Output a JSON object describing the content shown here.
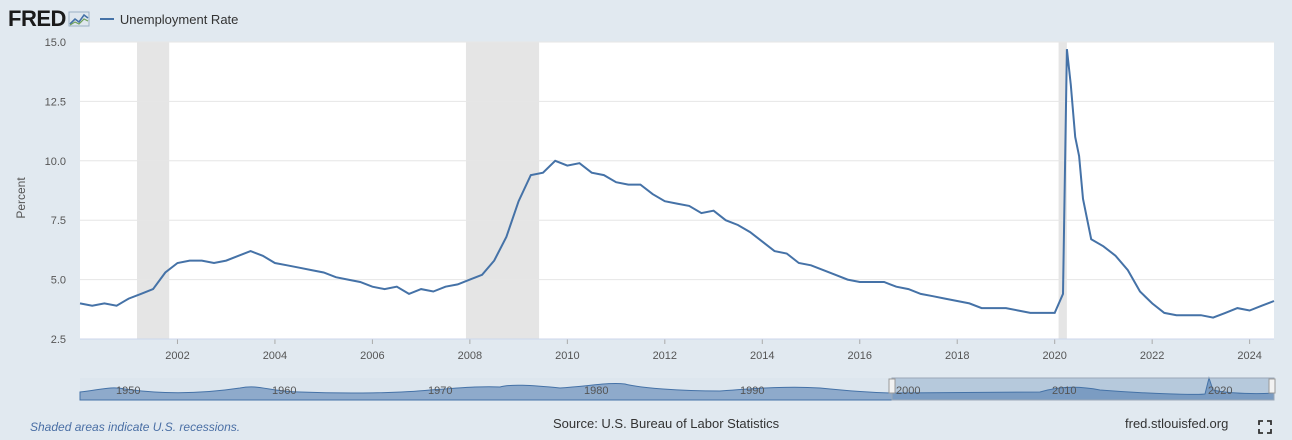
{
  "header": {
    "logo": "FRED",
    "legend_label": "Unemployment Rate"
  },
  "footer": {
    "note": "Shaded areas indicate U.S. recessions.",
    "source": "Source: U.S. Bureau of Labor Statistics",
    "site": "fred.stlouisfed.org"
  },
  "colors": {
    "series": "#4572a7",
    "recession": "#e5e5e5",
    "background": "#e1e9f0"
  },
  "icons": {
    "logo_mark": "chart-line-icon",
    "fullscreen": "fullscreen-icon"
  },
  "chart_data": {
    "type": "line",
    "ylabel": "Percent",
    "xlim": [
      2000.0,
      2024.5
    ],
    "ylim": [
      2.5,
      15.0
    ],
    "grid": true,
    "legend": "top-left",
    "yticks": [
      "2.5",
      "5.0",
      "7.5",
      "10.0",
      "12.5",
      "15.0"
    ],
    "ytick_values": [
      2.5,
      5.0,
      7.5,
      10.0,
      12.5,
      15.0
    ],
    "xticks": [
      "2002",
      "2004",
      "2006",
      "2008",
      "2010",
      "2012",
      "2014",
      "2016",
      "2018",
      "2020",
      "2022",
      "2024"
    ],
    "xtick_values": [
      2002,
      2004,
      2006,
      2008,
      2010,
      2012,
      2014,
      2016,
      2018,
      2020,
      2022,
      2024
    ],
    "recessions": [
      [
        2001.17,
        2001.83
      ],
      [
        2007.92,
        2009.42
      ],
      [
        2020.08,
        2020.25
      ]
    ],
    "series": [
      {
        "x": [
          2000.0,
          2000.25,
          2000.5,
          2000.75,
          2001.0,
          2001.25,
          2001.5,
          2001.75,
          2002.0,
          2002.25,
          2002.5,
          2002.75,
          2003.0,
          2003.25,
          2003.5,
          2003.75,
          2004.0,
          2004.25,
          2004.5,
          2004.75,
          2005.0,
          2005.25,
          2005.5,
          2005.75,
          2006.0,
          2006.25,
          2006.5,
          2006.75,
          2007.0,
          2007.25,
          2007.5,
          2007.75,
          2008.0,
          2008.25,
          2008.5,
          2008.75,
          2009.0,
          2009.25,
          2009.5,
          2009.75,
          2010.0,
          2010.25,
          2010.5,
          2010.75,
          2011.0,
          2011.25,
          2011.5,
          2011.75,
          2012.0,
          2012.25,
          2012.5,
          2012.75,
          2013.0,
          2013.25,
          2013.5,
          2013.75,
          2014.0,
          2014.25,
          2014.5,
          2014.75,
          2015.0,
          2015.25,
          2015.5,
          2015.75,
          2016.0,
          2016.25,
          2016.5,
          2016.75,
          2017.0,
          2017.25,
          2017.5,
          2017.75,
          2018.0,
          2018.25,
          2018.5,
          2018.75,
          2019.0,
          2019.25,
          2019.5,
          2019.75,
          2020.0,
          2020.17,
          2020.25,
          2020.33,
          2020.42,
          2020.5,
          2020.58,
          2020.75,
          2021.0,
          2021.25,
          2021.5,
          2021.75,
          2022.0,
          2022.25,
          2022.5,
          2022.75,
          2023.0,
          2023.25,
          2023.5,
          2023.75,
          2024.0,
          2024.25,
          2024.5
        ],
        "values": [
          4.0,
          3.9,
          4.0,
          3.9,
          4.2,
          4.4,
          4.6,
          5.3,
          5.7,
          5.8,
          5.8,
          5.7,
          5.8,
          6.0,
          6.2,
          6.0,
          5.7,
          5.6,
          5.5,
          5.4,
          5.3,
          5.1,
          5.0,
          4.9,
          4.7,
          4.6,
          4.7,
          4.4,
          4.6,
          4.5,
          4.7,
          4.8,
          5.0,
          5.2,
          5.8,
          6.8,
          8.3,
          9.4,
          9.5,
          10.0,
          9.8,
          9.9,
          9.5,
          9.4,
          9.1,
          9.0,
          9.0,
          8.6,
          8.3,
          8.2,
          8.1,
          7.8,
          7.9,
          7.5,
          7.3,
          7.0,
          6.6,
          6.2,
          6.1,
          5.7,
          5.6,
          5.4,
          5.2,
          5.0,
          4.9,
          4.9,
          4.9,
          4.7,
          4.6,
          4.4,
          4.3,
          4.2,
          4.1,
          4.0,
          3.8,
          3.8,
          3.8,
          3.7,
          3.6,
          3.6,
          3.6,
          4.4,
          14.7,
          13.2,
          11.0,
          10.2,
          8.4,
          6.7,
          6.4,
          6.0,
          5.4,
          4.5,
          4.0,
          3.6,
          3.5,
          3.5,
          3.5,
          3.4,
          3.6,
          3.8,
          3.7,
          3.9,
          4.1
        ]
      }
    ]
  }
}
